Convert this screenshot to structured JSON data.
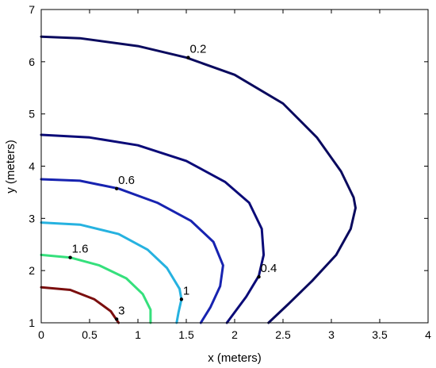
{
  "chart_data": {
    "type": "line",
    "subtype": "contour",
    "title": "",
    "xlabel": "x (meters)",
    "ylabel": "y (meters)",
    "xlim": [
      0,
      4
    ],
    "ylim": [
      1,
      7
    ],
    "xticks": [
      "0",
      "0.5",
      "1",
      "1.5",
      "2",
      "2.5",
      "3",
      "3.5",
      "4"
    ],
    "yticks": [
      "1",
      "2",
      "3",
      "4",
      "5",
      "6",
      "7"
    ],
    "grid": false,
    "legend": "none",
    "series": [
      {
        "label": "0.2",
        "color": "#0a0a5e",
        "label_at": [
          1.52,
          6.08
        ],
        "points": [
          [
            0,
            6.48
          ],
          [
            0.4,
            6.45
          ],
          [
            1.0,
            6.3
          ],
          [
            1.5,
            6.08
          ],
          [
            2.0,
            5.75
          ],
          [
            2.5,
            5.2
          ],
          [
            2.85,
            4.55
          ],
          [
            3.1,
            3.9
          ],
          [
            3.23,
            3.4
          ],
          [
            3.25,
            3.2
          ],
          [
            3.2,
            2.8
          ],
          [
            3.05,
            2.3
          ],
          [
            2.8,
            1.8
          ],
          [
            2.55,
            1.35
          ],
          [
            2.35,
            1.0
          ]
        ]
      },
      {
        "label": "",
        "color": "#0b0b78",
        "points": [
          [
            0,
            4.6
          ],
          [
            0.5,
            4.55
          ],
          [
            1.0,
            4.4
          ],
          [
            1.5,
            4.1
          ],
          [
            1.9,
            3.7
          ],
          [
            2.15,
            3.3
          ],
          [
            2.28,
            2.8
          ],
          [
            2.3,
            2.3
          ],
          [
            2.25,
            1.9
          ],
          [
            2.12,
            1.5
          ],
          [
            1.92,
            1.0
          ]
        ]
      },
      {
        "label": "0.4",
        "color": "#0b0b78",
        "label_at": [
          2.25,
          1.88
        ],
        "points": []
      },
      {
        "label": "0.6",
        "color": "#1723b0",
        "label_at": [
          0.78,
          3.57
        ],
        "points": [
          [
            0,
            3.75
          ],
          [
            0.4,
            3.72
          ],
          [
            0.8,
            3.57
          ],
          [
            1.2,
            3.3
          ],
          [
            1.55,
            2.95
          ],
          [
            1.78,
            2.55
          ],
          [
            1.88,
            2.1
          ],
          [
            1.85,
            1.7
          ],
          [
            1.75,
            1.3
          ],
          [
            1.65,
            1.0
          ]
        ]
      },
      {
        "label": "1",
        "color": "#26b2e0",
        "label_at": [
          1.45,
          1.45
        ],
        "points": [
          [
            0,
            2.92
          ],
          [
            0.4,
            2.88
          ],
          [
            0.8,
            2.7
          ],
          [
            1.1,
            2.4
          ],
          [
            1.3,
            2.05
          ],
          [
            1.43,
            1.65
          ],
          [
            1.45,
            1.45
          ],
          [
            1.42,
            1.2
          ],
          [
            1.4,
            1.0
          ]
        ]
      },
      {
        "label": "1.6",
        "color": "#35e07c",
        "label_at": [
          0.3,
          2.25
        ],
        "points": [
          [
            0,
            2.3
          ],
          [
            0.3,
            2.25
          ],
          [
            0.6,
            2.1
          ],
          [
            0.88,
            1.85
          ],
          [
            1.05,
            1.55
          ],
          [
            1.13,
            1.25
          ],
          [
            1.13,
            1.0
          ]
        ]
      },
      {
        "label": "3",
        "color": "#7b0e0e",
        "label_at": [
          0.78,
          1.07
        ],
        "points": [
          [
            0,
            1.68
          ],
          [
            0.3,
            1.63
          ],
          [
            0.55,
            1.45
          ],
          [
            0.72,
            1.22
          ],
          [
            0.8,
            1.0
          ]
        ]
      }
    ]
  }
}
